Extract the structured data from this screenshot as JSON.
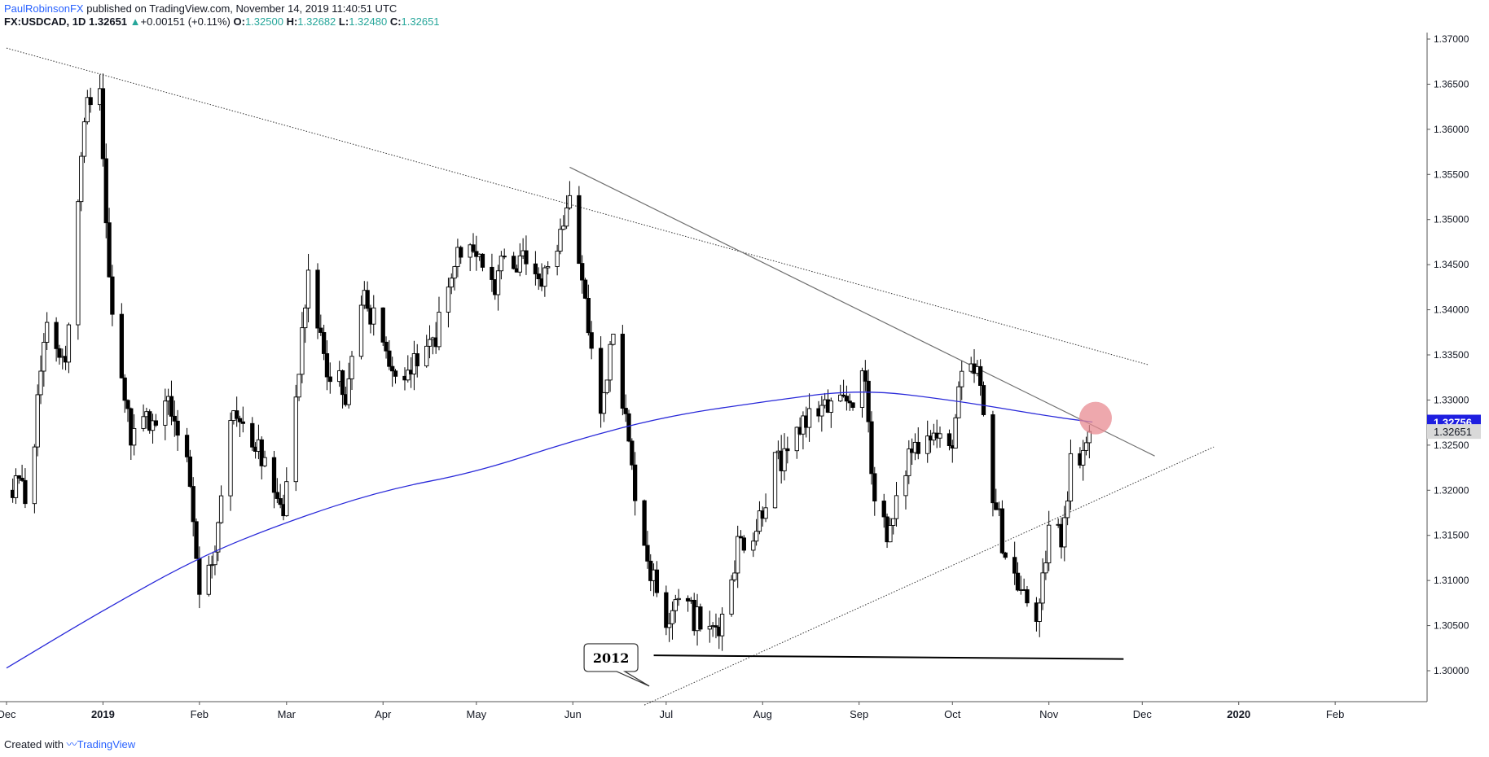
{
  "header": {
    "author": "PaulRobinsonFX",
    "published": "published on TradingView.com, November 14, 2019 11:40:51 UTC",
    "symbol": "FX:USDCAD, 1D",
    "last": "1.32651",
    "change_arrow": "▲",
    "change": "+0.00151 (+0.11%)",
    "o_label": "O:",
    "o_value": "1.32500",
    "h_label": "H:",
    "h_value": "1.32682",
    "l_label": "L:",
    "l_value": "1.32480",
    "c_label": "C:",
    "c_value": "1.32651"
  },
  "footer": {
    "created_with": "Created with",
    "brand": "TradingView"
  },
  "annotation_text": "2012",
  "colors": {
    "up_body": "#ffffff",
    "down_body": "#000000",
    "wick": "#000000",
    "ma_line": "#2929d9",
    "ma_badge": "#1e1ee0",
    "last_badge": "#d9d9d9",
    "circle": "#e88b91",
    "trendline": "#707070"
  },
  "chart_data": {
    "type": "candlestick",
    "y_axis_ticks": [
      "1.37000",
      "1.36500",
      "1.36000",
      "1.35500",
      "1.35000",
      "1.34500",
      "1.34000",
      "1.33500",
      "1.33000",
      "1.32500",
      "1.32000",
      "1.31500",
      "1.31000",
      "1.30500",
      "1.30000"
    ],
    "ylim": [
      1.2962,
      1.37
    ],
    "x_axis_ticks": [
      "Dec",
      "2019",
      "Feb",
      "Mar",
      "Apr",
      "May",
      "Jun",
      "Jul",
      "Aug",
      "Sep",
      "Oct",
      "Nov",
      "Dec",
      "2020",
      "Feb"
    ],
    "x_axis_bold": [
      "2019",
      "2020"
    ],
    "price_labels": {
      "ma": "1.32756",
      "last": "1.32651"
    },
    "anchors": [
      [
        "2018-12-08",
        1.32
      ],
      [
        "2018-12-14",
        1.338
      ],
      [
        "2018-12-20",
        1.335
      ],
      [
        "2018-12-26",
        1.362
      ],
      [
        "2018-12-31",
        1.364
      ],
      [
        "2019-01-04",
        1.338
      ],
      [
        "2019-01-10",
        1.326
      ],
      [
        "2019-01-16",
        1.328
      ],
      [
        "2019-01-22",
        1.33
      ],
      [
        "2019-01-28",
        1.324
      ],
      [
        "2019-02-01",
        1.31
      ],
      [
        "2019-02-06",
        1.314
      ],
      [
        "2019-02-12",
        1.329
      ],
      [
        "2019-02-20",
        1.324
      ],
      [
        "2019-02-28",
        1.316
      ],
      [
        "2019-03-04",
        1.33
      ],
      [
        "2019-03-08",
        1.344
      ],
      [
        "2019-03-14",
        1.333
      ],
      [
        "2019-03-20",
        1.331
      ],
      [
        "2019-03-26",
        1.341
      ],
      [
        "2019-04-01",
        1.337
      ],
      [
        "2019-04-05",
        1.332
      ],
      [
        "2019-04-12",
        1.334
      ],
      [
        "2019-04-18",
        1.337
      ],
      [
        "2019-04-24",
        1.346
      ],
      [
        "2019-04-30",
        1.347
      ],
      [
        "2019-05-06",
        1.342
      ],
      [
        "2019-05-10",
        1.347
      ],
      [
        "2019-05-16",
        1.345
      ],
      [
        "2019-05-22",
        1.343
      ],
      [
        "2019-05-28",
        1.349
      ],
      [
        "2019-05-31",
        1.352
      ],
      [
        "2019-06-04",
        1.343
      ],
      [
        "2019-06-10",
        1.328
      ],
      [
        "2019-06-14",
        1.339
      ],
      [
        "2019-06-20",
        1.322
      ],
      [
        "2019-06-26",
        1.311
      ],
      [
        "2019-07-01",
        1.306
      ],
      [
        "2019-07-05",
        1.309
      ],
      [
        "2019-07-10",
        1.306
      ],
      [
        "2019-07-15",
        1.304
      ],
      [
        "2019-07-19",
        1.306
      ],
      [
        "2019-07-24",
        1.314
      ],
      [
        "2019-07-30",
        1.316
      ],
      [
        "2019-08-05",
        1.323
      ],
      [
        "2019-08-09",
        1.323
      ],
      [
        "2019-08-14",
        1.328
      ],
      [
        "2019-08-20",
        1.329
      ],
      [
        "2019-08-26",
        1.329
      ],
      [
        "2019-09-03",
        1.332
      ],
      [
        "2019-09-06",
        1.319
      ],
      [
        "2019-09-11",
        1.315
      ],
      [
        "2019-09-17",
        1.324
      ],
      [
        "2019-09-23",
        1.327
      ],
      [
        "2019-09-30",
        1.324
      ],
      [
        "2019-10-04",
        1.332
      ],
      [
        "2019-10-09",
        1.333
      ],
      [
        "2019-10-14",
        1.32
      ],
      [
        "2019-10-18",
        1.313
      ],
      [
        "2019-10-24",
        1.308
      ],
      [
        "2019-10-29",
        1.306
      ],
      [
        "2019-11-01",
        1.316
      ],
      [
        "2019-11-05",
        1.315
      ],
      [
        "2019-11-08",
        1.323
      ],
      [
        "2019-11-13",
        1.325
      ],
      [
        "2019-11-14",
        1.32651
      ]
    ],
    "moving_average_points": [
      [
        "2018-12-01",
        1.3003
      ],
      [
        "2019-01-01",
        1.3067
      ],
      [
        "2019-02-01",
        1.3126
      ],
      [
        "2019-03-01",
        1.3165
      ],
      [
        "2019-04-01",
        1.32
      ],
      [
        "2019-05-01",
        1.322
      ],
      [
        "2019-06-01",
        1.3255
      ],
      [
        "2019-07-01",
        1.3282
      ],
      [
        "2019-08-01",
        1.3298
      ],
      [
        "2019-09-01",
        1.3312
      ],
      [
        "2019-10-01",
        1.33
      ],
      [
        "2019-11-01",
        1.3282
      ],
      [
        "2019-11-15",
        1.32756
      ]
    ],
    "trendlines": [
      {
        "style": "dotted",
        "from": [
          "2018-12-01",
          1.369
        ],
        "to": [
          "2019-12-03",
          1.3339
        ]
      },
      {
        "style": "solid",
        "from": [
          "2019-05-31",
          1.3558
        ],
        "to": [
          "2019-12-05",
          1.3238
        ]
      },
      {
        "style": "dotted",
        "from": [
          "2019-06-24",
          1.2962
        ],
        "to": [
          "2019-12-24",
          1.3248
        ]
      },
      {
        "style": "solid-bold",
        "from": [
          "2019-06-27",
          1.3017
        ],
        "to": [
          "2019-11-25",
          1.3013
        ]
      }
    ],
    "highlight": {
      "date": "2019-11-16",
      "value": 1.328
    },
    "callout": {
      "date": "2019-06-13",
      "value": 1.301
    }
  }
}
